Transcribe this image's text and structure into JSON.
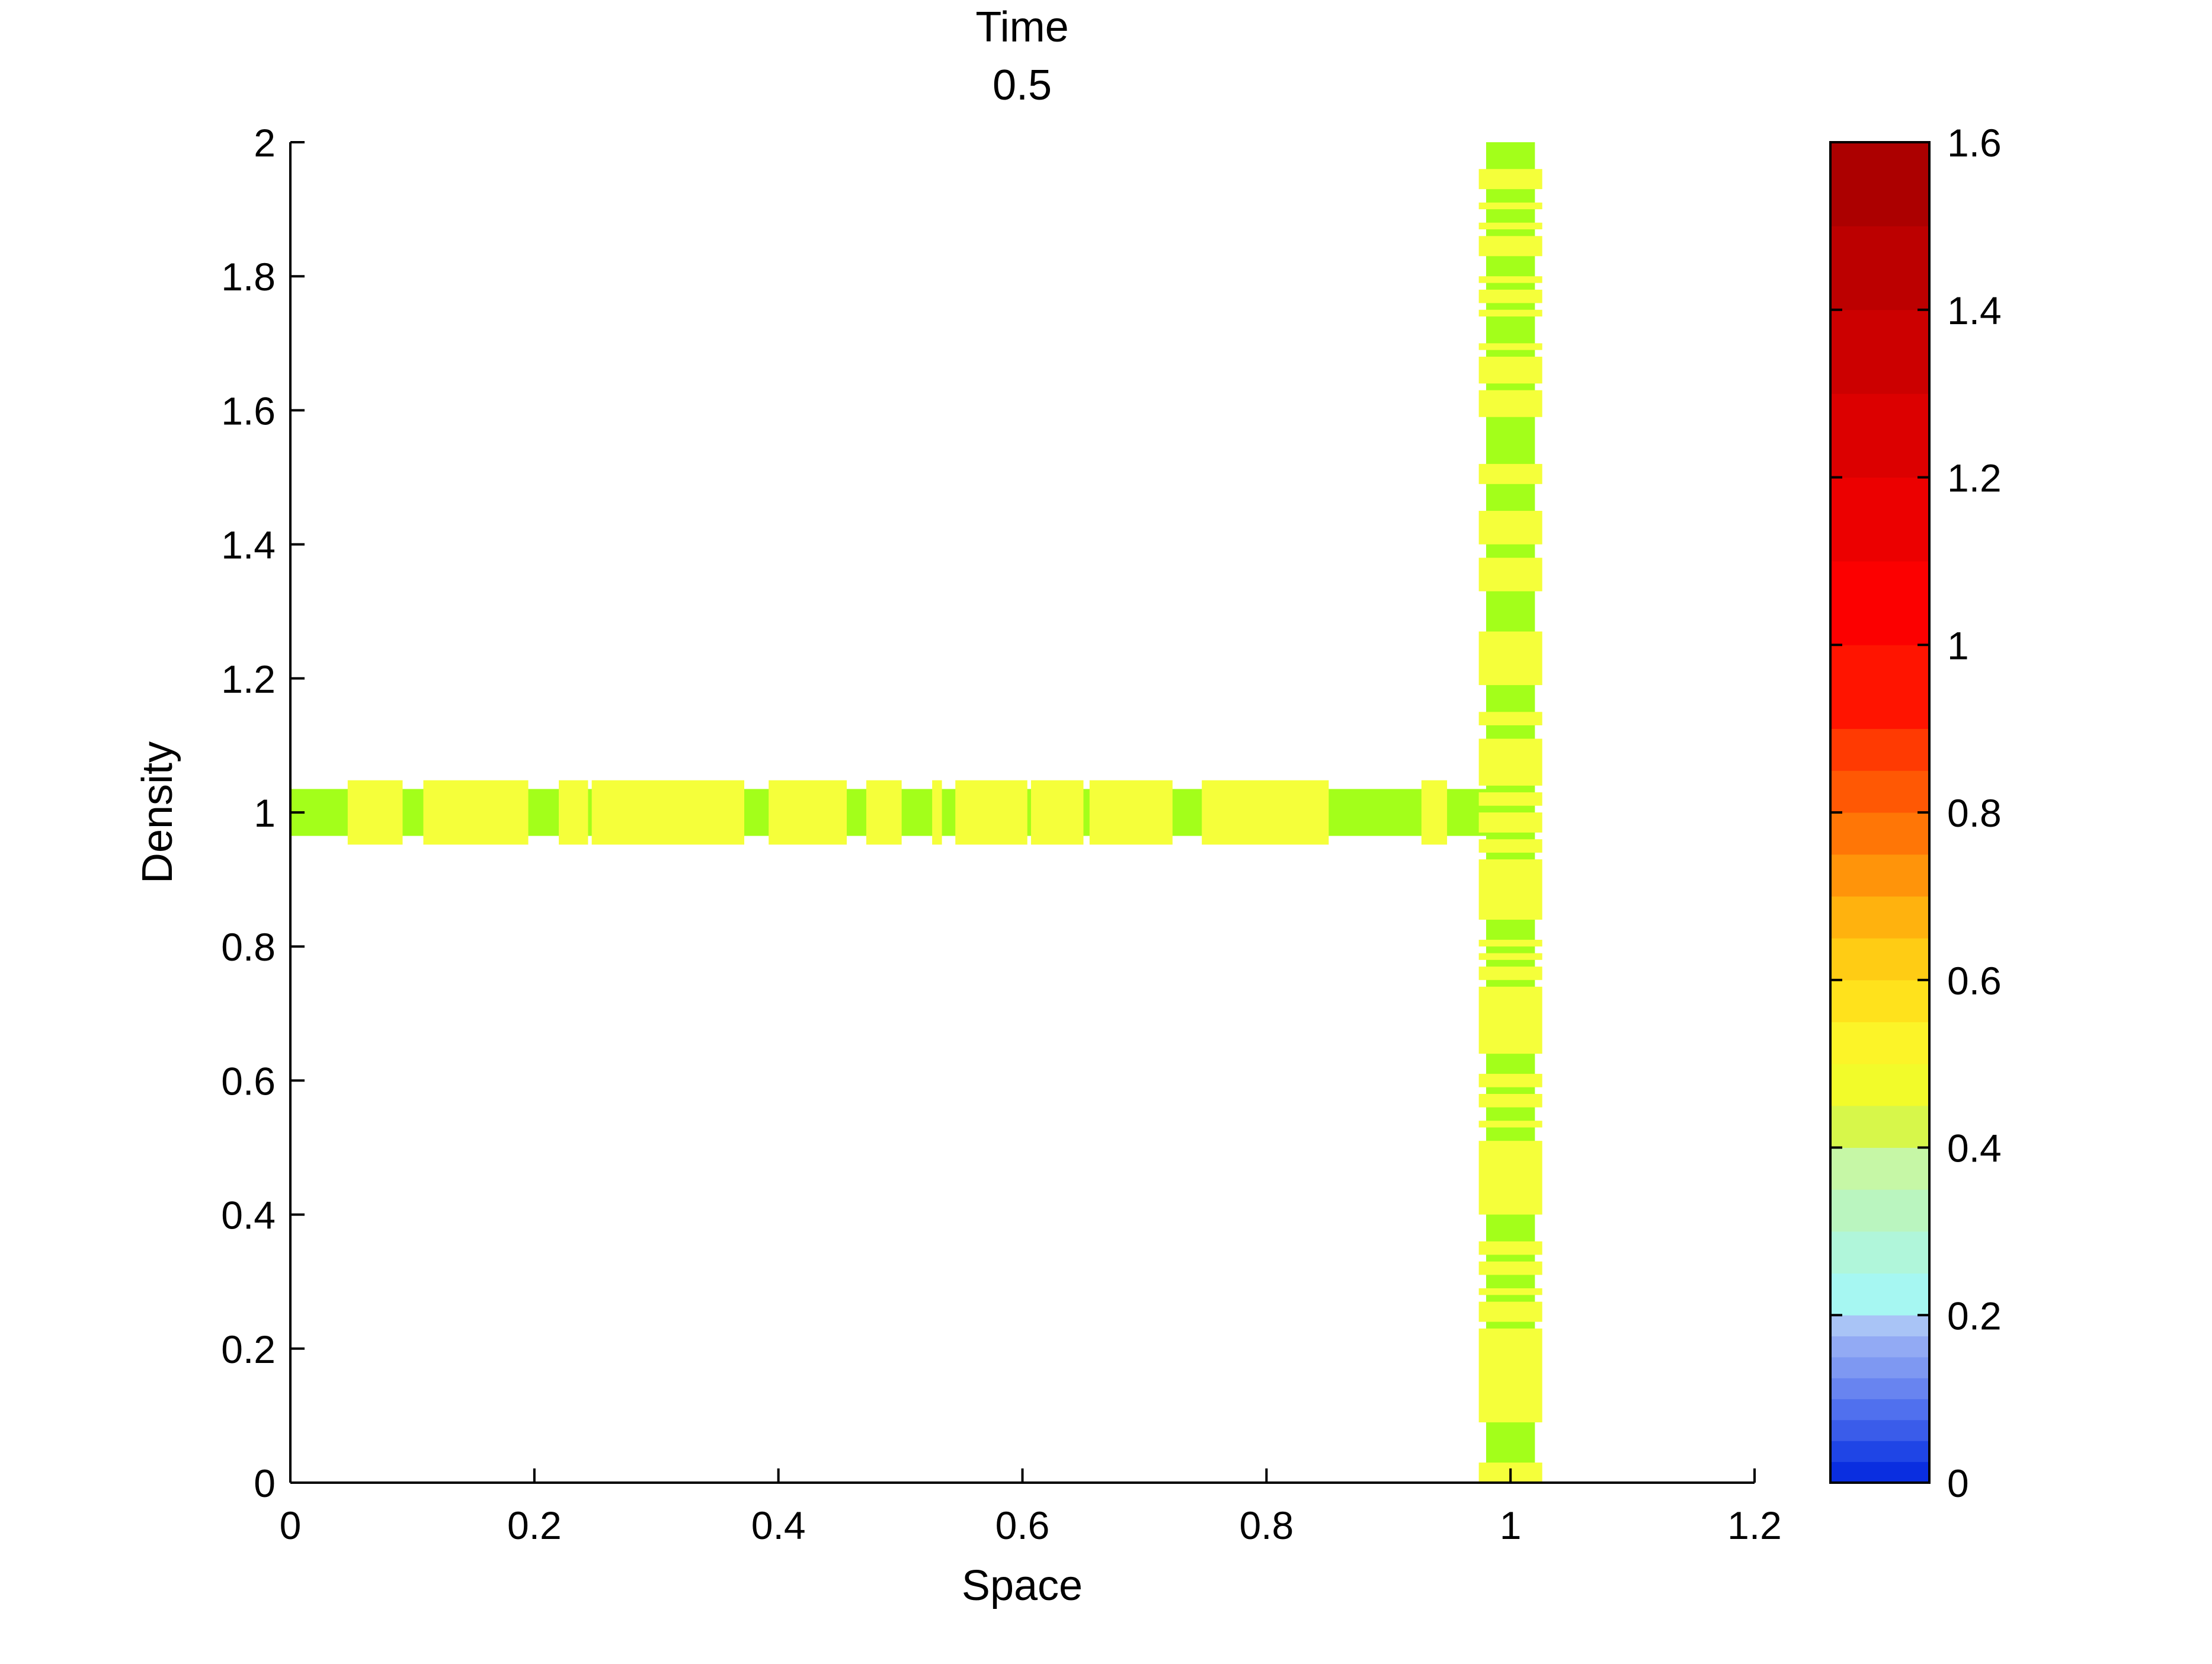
{
  "chart_data": {
    "type": "heatmap",
    "title": [
      "Time",
      "0.5"
    ],
    "xlabel": "Space",
    "ylabel": "Density",
    "xlim": [
      0,
      1.2
    ],
    "ylim": [
      0,
      2
    ],
    "grid": false,
    "x_ticks": [
      "0",
      "0.2",
      "0.4",
      "0.6",
      "0.8",
      "1",
      "1.2"
    ],
    "y_ticks": [
      "0",
      "0.2",
      "0.4",
      "0.6",
      "0.8",
      "1",
      "1.2",
      "1.4",
      "1.6",
      "1.8",
      "2"
    ],
    "colorbar": {
      "range": [
        0,
        1.6
      ],
      "ticks": [
        "0",
        "0.2",
        "0.4",
        "0.6",
        "0.8",
        "1",
        "1.2",
        "1.4",
        "1.6"
      ],
      "levels": [
        {
          "from": 0.0,
          "to": 0.025,
          "color": "#0a2ee0"
        },
        {
          "from": 0.025,
          "to": 0.05,
          "color": "#1f45e6"
        },
        {
          "from": 0.05,
          "to": 0.075,
          "color": "#3a5cea"
        },
        {
          "from": 0.075,
          "to": 0.1,
          "color": "#5070ee"
        },
        {
          "from": 0.1,
          "to": 0.125,
          "color": "#6884f0"
        },
        {
          "from": 0.125,
          "to": 0.15,
          "color": "#7e98f2"
        },
        {
          "from": 0.15,
          "to": 0.175,
          "color": "#92aaf4"
        },
        {
          "from": 0.175,
          "to": 0.2,
          "color": "#a9c4f6"
        },
        {
          "from": 0.2,
          "to": 0.25,
          "color": "#a6f7f2"
        },
        {
          "from": 0.25,
          "to": 0.3,
          "color": "#b0f6da"
        },
        {
          "from": 0.3,
          "to": 0.35,
          "color": "#baf5bf"
        },
        {
          "from": 0.35,
          "to": 0.4,
          "color": "#c6f7a6"
        },
        {
          "from": 0.4,
          "to": 0.45,
          "color": "#d7f74a"
        },
        {
          "from": 0.45,
          "to": 0.5,
          "color": "#f2fb2a"
        },
        {
          "from": 0.5,
          "to": 0.55,
          "color": "#fcf428"
        },
        {
          "from": 0.55,
          "to": 0.6,
          "color": "#ffe21c"
        },
        {
          "from": 0.6,
          "to": 0.65,
          "color": "#ffcc14"
        },
        {
          "from": 0.65,
          "to": 0.7,
          "color": "#ffb20e"
        },
        {
          "from": 0.7,
          "to": 0.75,
          "color": "#ff940a"
        },
        {
          "from": 0.75,
          "to": 0.8,
          "color": "#ff7606"
        },
        {
          "from": 0.8,
          "to": 0.85,
          "color": "#ff5804"
        },
        {
          "from": 0.85,
          "to": 0.9,
          "color": "#ff3a02"
        },
        {
          "from": 0.9,
          "to": 1.0,
          "color": "#ff1400"
        },
        {
          "from": 1.0,
          "to": 1.1,
          "color": "#fc0000"
        },
        {
          "from": 1.1,
          "to": 1.2,
          "color": "#ec0000"
        },
        {
          "from": 1.2,
          "to": 1.3,
          "color": "#dc0000"
        },
        {
          "from": 1.3,
          "to": 1.4,
          "color": "#cc0000"
        },
        {
          "from": 1.4,
          "to": 1.5,
          "color": "#bc0000"
        },
        {
          "from": 1.5,
          "to": 1.6,
          "color": "#ac0000"
        }
      ]
    },
    "base_colors": {
      "low": "#a3ff1a",
      "high": "#f5ff3a"
    },
    "series": [
      {
        "name": "",
        "orientation": "horizontal",
        "center": 1.0,
        "span": [
          0.0,
          0.98
        ],
        "base_value": 0.43,
        "base_half_width": 0.035,
        "segments": [
          {
            "from": 0.047,
            "to": 0.092,
            "value": 0.5,
            "half_width": 0.048
          },
          {
            "from": 0.109,
            "to": 0.195,
            "value": 0.5,
            "half_width": 0.048
          },
          {
            "from": 0.22,
            "to": 0.244,
            "value": 0.5,
            "half_width": 0.048
          },
          {
            "from": 0.247,
            "to": 0.372,
            "value": 0.5,
            "half_width": 0.048
          },
          {
            "from": 0.392,
            "to": 0.456,
            "value": 0.5,
            "half_width": 0.048
          },
          {
            "from": 0.472,
            "to": 0.501,
            "value": 0.5,
            "half_width": 0.048
          },
          {
            "from": 0.526,
            "to": 0.534,
            "value": 0.5,
            "half_width": 0.048
          },
          {
            "from": 0.545,
            "to": 0.604,
            "value": 0.5,
            "half_width": 0.048
          },
          {
            "from": 0.607,
            "to": 0.65,
            "value": 0.5,
            "half_width": 0.048
          },
          {
            "from": 0.655,
            "to": 0.723,
            "value": 0.5,
            "half_width": 0.048
          },
          {
            "from": 0.747,
            "to": 0.851,
            "value": 0.5,
            "half_width": 0.048
          },
          {
            "from": 0.927,
            "to": 0.948,
            "value": 0.5,
            "half_width": 0.048
          }
        ]
      },
      {
        "name": "",
        "orientation": "vertical",
        "center": 1.0,
        "span": [
          0.0,
          2.0
        ],
        "base_value": 0.43,
        "base_half_width": 0.02,
        "segments": [
          {
            "from": 0.0,
            "to": 0.03,
            "value": 0.5,
            "half_width": 0.026
          },
          {
            "from": 0.09,
            "to": 0.23,
            "value": 0.5,
            "half_width": 0.026
          },
          {
            "from": 0.24,
            "to": 0.27,
            "value": 0.5,
            "half_width": 0.026
          },
          {
            "from": 0.28,
            "to": 0.29,
            "value": 0.5,
            "half_width": 0.026
          },
          {
            "from": 0.31,
            "to": 0.33,
            "value": 0.5,
            "half_width": 0.026
          },
          {
            "from": 0.34,
            "to": 0.36,
            "value": 0.5,
            "half_width": 0.026
          },
          {
            "from": 0.4,
            "to": 0.51,
            "value": 0.5,
            "half_width": 0.026
          },
          {
            "from": 0.53,
            "to": 0.54,
            "value": 0.5,
            "half_width": 0.026
          },
          {
            "from": 0.56,
            "to": 0.58,
            "value": 0.5,
            "half_width": 0.026
          },
          {
            "from": 0.59,
            "to": 0.61,
            "value": 0.5,
            "half_width": 0.026
          },
          {
            "from": 0.64,
            "to": 0.74,
            "value": 0.5,
            "half_width": 0.026
          },
          {
            "from": 0.75,
            "to": 0.77,
            "value": 0.5,
            "half_width": 0.026
          },
          {
            "from": 0.78,
            "to": 0.79,
            "value": 0.5,
            "half_width": 0.026
          },
          {
            "from": 0.8,
            "to": 0.81,
            "value": 0.5,
            "half_width": 0.026
          },
          {
            "from": 0.84,
            "to": 0.93,
            "value": 0.5,
            "half_width": 0.026
          },
          {
            "from": 0.94,
            "to": 0.96,
            "value": 0.5,
            "half_width": 0.026
          },
          {
            "from": 0.97,
            "to": 1.0,
            "value": 0.5,
            "half_width": 0.026
          },
          {
            "from": 1.01,
            "to": 1.03,
            "value": 0.5,
            "half_width": 0.026
          },
          {
            "from": 1.04,
            "to": 1.11,
            "value": 0.5,
            "half_width": 0.026
          },
          {
            "from": 1.13,
            "to": 1.15,
            "value": 0.5,
            "half_width": 0.026
          },
          {
            "from": 1.19,
            "to": 1.27,
            "value": 0.5,
            "half_width": 0.026
          },
          {
            "from": 1.33,
            "to": 1.38,
            "value": 0.5,
            "half_width": 0.026
          },
          {
            "from": 1.4,
            "to": 1.45,
            "value": 0.5,
            "half_width": 0.026
          },
          {
            "from": 1.49,
            "to": 1.52,
            "value": 0.5,
            "half_width": 0.026
          },
          {
            "from": 1.59,
            "to": 1.63,
            "value": 0.5,
            "half_width": 0.026
          },
          {
            "from": 1.64,
            "to": 1.68,
            "value": 0.5,
            "half_width": 0.026
          },
          {
            "from": 1.69,
            "to": 1.7,
            "value": 0.5,
            "half_width": 0.026
          },
          {
            "from": 1.74,
            "to": 1.75,
            "value": 0.5,
            "half_width": 0.026
          },
          {
            "from": 1.76,
            "to": 1.78,
            "value": 0.5,
            "half_width": 0.026
          },
          {
            "from": 1.79,
            "to": 1.8,
            "value": 0.5,
            "half_width": 0.026
          },
          {
            "from": 1.83,
            "to": 1.86,
            "value": 0.5,
            "half_width": 0.026
          },
          {
            "from": 1.87,
            "to": 1.88,
            "value": 0.5,
            "half_width": 0.026
          },
          {
            "from": 1.9,
            "to": 1.91,
            "value": 0.5,
            "half_width": 0.026
          },
          {
            "from": 1.93,
            "to": 1.96,
            "value": 0.5,
            "half_width": 0.026
          }
        ]
      }
    ]
  }
}
